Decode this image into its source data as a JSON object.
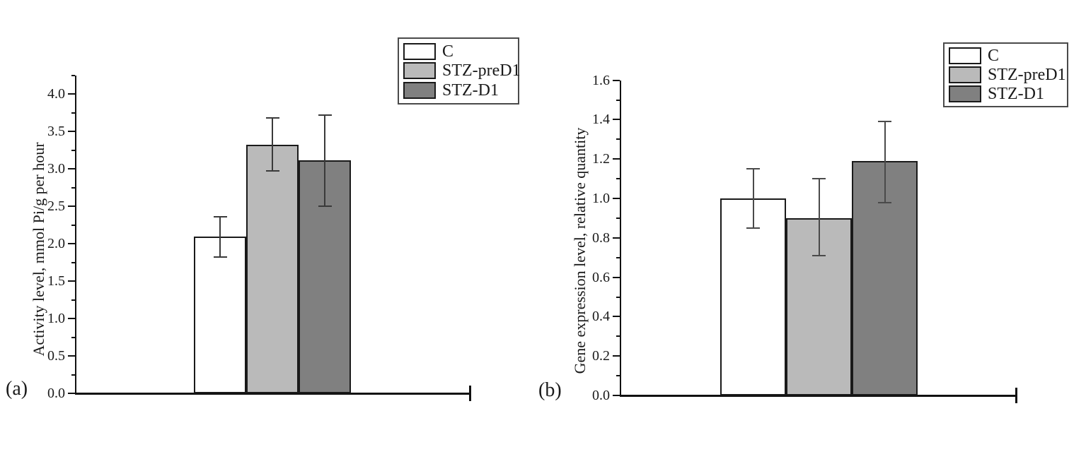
{
  "figure": {
    "background": "#ffffff",
    "panel_count": 2
  },
  "chart_data": [
    {
      "type": "bar",
      "panel_label": "(a)",
      "title": "",
      "xlabel": "",
      "ylabel": "Activity level, mmol Pi/g per hour",
      "categories": [
        "C",
        "STZ-preD1",
        "STZ-D1"
      ],
      "values": [
        2.09,
        3.32,
        3.11
      ],
      "error_low": [
        1.82,
        2.97,
        2.5
      ],
      "error_high": [
        2.36,
        3.68,
        3.72
      ],
      "ylim": [
        0,
        4.25
      ],
      "yticks": [
        0,
        0.5,
        1,
        1.5,
        2,
        2.5,
        3,
        3.5,
        4
      ],
      "ytick_labels": [
        "0.0",
        "0.5",
        "1.0",
        "1.5",
        "2.0",
        "2.5",
        "3.0",
        "3.5",
        "4.0"
      ],
      "minor_tick_step": 0.25,
      "grid": false,
      "legend": {
        "position": "top-right",
        "entries": [
          "C",
          "STZ-preD1",
          "STZ-D1"
        ]
      },
      "bar_colors": [
        "#ffffff",
        "#bababa",
        "#808080"
      ],
      "bar_border_color": "#1a1a1a",
      "error_bar_color": "#3a3a3a",
      "axis_color": "#111111"
    },
    {
      "type": "bar",
      "panel_label": "(b)",
      "title": "",
      "xlabel": "",
      "ylabel": "Gene expression level, relative quantity",
      "categories": [
        "C",
        "STZ-preD1",
        "STZ-D1"
      ],
      "values": [
        1.0,
        0.9,
        1.19
      ],
      "error_low": [
        0.85,
        0.71,
        0.98
      ],
      "error_high": [
        1.15,
        1.1,
        1.39
      ],
      "ylim": [
        0,
        1.6
      ],
      "yticks": [
        0,
        0.2,
        0.4,
        0.6,
        0.8,
        1.0,
        1.2,
        1.4,
        1.6
      ],
      "ytick_labels": [
        "0.0",
        "0.2",
        "0.4",
        "0.6",
        "0.8",
        "1.0",
        "1.2",
        "1.4",
        "1.6"
      ],
      "minor_tick_step": 0.1,
      "grid": false,
      "legend": {
        "position": "top-right",
        "entries": [
          "C",
          "STZ-preD1",
          "STZ-D1"
        ]
      },
      "bar_colors": [
        "#ffffff",
        "#bababa",
        "#808080"
      ],
      "bar_border_color": "#1a1a1a",
      "error_bar_color": "#4a4a4a",
      "axis_color": "#111111"
    }
  ]
}
